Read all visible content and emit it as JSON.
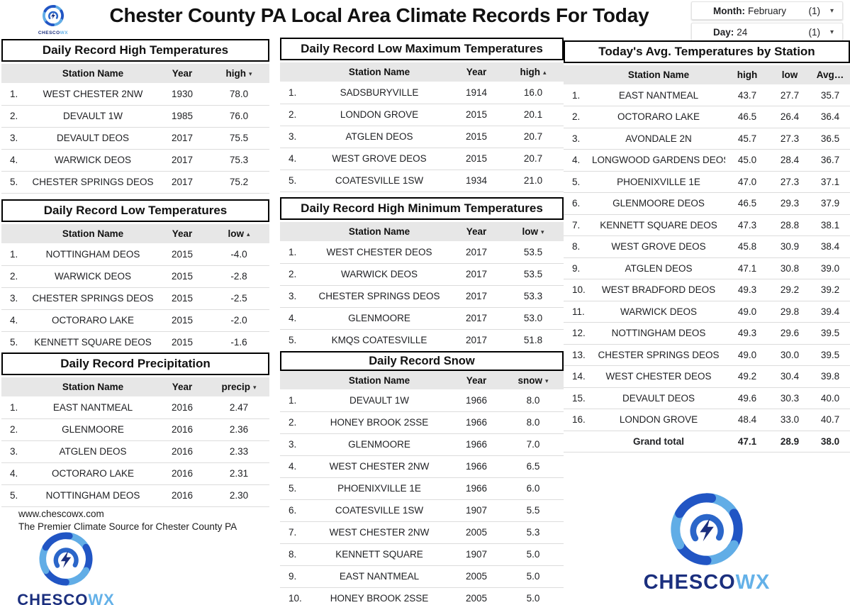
{
  "header": {
    "title": "Chester County PA Local Area Climate Records For Today",
    "filters": [
      {
        "label": "Month:",
        "value": "February",
        "count": "(1)",
        "caret": "▾"
      },
      {
        "label": "Day:",
        "value": "24",
        "count": "(1)",
        "caret": "▾"
      }
    ]
  },
  "brand": {
    "name_primary": "CHESCO",
    "name_secondary": "WX",
    "url": "www.chescowx.com",
    "tagline": "The Premier Climate Source for Chester County PA",
    "color_dark": "#1b2f7e",
    "color_light": "#64b1e8",
    "swirl_dark": "#2155c4",
    "swirl_light": "#61ade6"
  },
  "record_tables": [
    {
      "key": "daily-record-high-temperatures",
      "title": "Daily Record High Temperatures",
      "columns": [
        "Station Name",
        "Year",
        "high"
      ],
      "sort_dir": "desc",
      "rows": [
        [
          "WEST CHESTER 2NW",
          "1930",
          "78.0"
        ],
        [
          "DEVAULT 1W",
          "1985",
          "76.0"
        ],
        [
          "DEVAULT DEOS",
          "2017",
          "75.5"
        ],
        [
          "WARWICK DEOS",
          "2017",
          "75.3"
        ],
        [
          "CHESTER SPRINGS DEOS",
          "2017",
          "75.2"
        ]
      ]
    },
    {
      "key": "daily-record-low-maximum-temperatures",
      "title": "Daily Record Low Maximum Temperatures",
      "columns": [
        "Station Name",
        "Year",
        "high"
      ],
      "sort_dir": "asc",
      "rows": [
        [
          "SADSBURYVILLE",
          "1914",
          "16.0"
        ],
        [
          "LONDON GROVE",
          "2015",
          "20.1"
        ],
        [
          "ATGLEN DEOS",
          "2015",
          "20.7"
        ],
        [
          "WEST GROVE DEOS",
          "2015",
          "20.7"
        ],
        [
          "COATESVILLE 1SW",
          "1934",
          "21.0"
        ]
      ]
    },
    {
      "key": "daily-record-low-temperatures",
      "title": "Daily Record Low Temperatures",
      "columns": [
        "Station Name",
        "Year",
        "low"
      ],
      "sort_dir": "asc",
      "rows": [
        [
          "NOTTINGHAM DEOS",
          "2015",
          "-4.0"
        ],
        [
          "WARWICK DEOS",
          "2015",
          "-2.8"
        ],
        [
          "CHESTER SPRINGS DEOS",
          "2015",
          "-2.5"
        ],
        [
          "OCTORARO LAKE",
          "2015",
          "-2.0"
        ],
        [
          "KENNETT SQUARE DEOS",
          "2015",
          "-1.6"
        ]
      ]
    },
    {
      "key": "daily-record-high-minimum-temperatures",
      "title": "Daily Record High Minimum Temperatures",
      "columns": [
        "Station Name",
        "Year",
        "low"
      ],
      "sort_dir": "desc",
      "rows": [
        [
          "WEST CHESTER DEOS",
          "2017",
          "53.5"
        ],
        [
          "WARWICK DEOS",
          "2017",
          "53.5"
        ],
        [
          "CHESTER SPRINGS DEOS",
          "2017",
          "53.3"
        ],
        [
          "GLENMOORE",
          "2017",
          "53.0"
        ],
        [
          "KMQS COATESVILLE",
          "2017",
          "51.8"
        ]
      ]
    },
    {
      "key": "daily-record-precipitation",
      "title": "Daily Record Precipitation",
      "columns": [
        "Station Name",
        "Year",
        "precip"
      ],
      "sort_dir": "desc",
      "rows": [
        [
          "EAST NANTMEAL",
          "2016",
          "2.47"
        ],
        [
          "GLENMOORE",
          "2016",
          "2.36"
        ],
        [
          "ATGLEN DEOS",
          "2016",
          "2.33"
        ],
        [
          "OCTORARO LAKE",
          "2016",
          "2.31"
        ],
        [
          "NOTTINGHAM DEOS",
          "2016",
          "2.30"
        ]
      ]
    },
    {
      "key": "daily-record-snow",
      "title": "Daily Record Snow",
      "columns": [
        "Station Name",
        "Year",
        "snow"
      ],
      "sort_dir": "desc",
      "rows": [
        [
          "DEVAULT 1W",
          "1966",
          "8.0"
        ],
        [
          "HONEY BROOK 2SSE",
          "1966",
          "8.0"
        ],
        [
          "GLENMOORE",
          "1966",
          "7.0"
        ],
        [
          "WEST CHESTER 2NW",
          "1966",
          "6.5"
        ],
        [
          "PHOENIXVILLE 1E",
          "1966",
          "6.0"
        ],
        [
          "COATESVILLE 1SW",
          "1907",
          "5.5"
        ],
        [
          "WEST CHESTER 2NW",
          "2005",
          "5.3"
        ],
        [
          "KENNETT SQUARE",
          "1907",
          "5.0"
        ],
        [
          "EAST NANTMEAL",
          "2005",
          "5.0"
        ],
        [
          "HONEY BROOK 2SSE",
          "2005",
          "5.0"
        ]
      ]
    }
  ],
  "avg_table": {
    "key": "todays-avg-temperatures-by-station",
    "title": "Today's Avg. Temperatures by Station",
    "columns": [
      "Station Name",
      "high",
      "low",
      "Avg…"
    ],
    "rows": [
      [
        "EAST NANTMEAL",
        "43.7",
        "27.7",
        "35.7"
      ],
      [
        "OCTORARO LAKE",
        "46.5",
        "26.4",
        "36.4"
      ],
      [
        "AVONDALE 2N",
        "45.7",
        "27.3",
        "36.5"
      ],
      [
        "LONGWOOD GARDENS DEOS",
        "45.0",
        "28.4",
        "36.7"
      ],
      [
        "PHOENIXVILLE 1E",
        "47.0",
        "27.3",
        "37.1"
      ],
      [
        "GLENMOORE DEOS",
        "46.5",
        "29.3",
        "37.9"
      ],
      [
        "KENNETT SQUARE DEOS",
        "47.3",
        "28.8",
        "38.1"
      ],
      [
        "WEST GROVE DEOS",
        "45.8",
        "30.9",
        "38.4"
      ],
      [
        "ATGLEN DEOS",
        "47.1",
        "30.8",
        "39.0"
      ],
      [
        "WEST BRADFORD DEOS",
        "49.3",
        "29.2",
        "39.2"
      ],
      [
        "WARWICK DEOS",
        "49.0",
        "29.8",
        "39.4"
      ],
      [
        "NOTTINGHAM DEOS",
        "49.3",
        "29.6",
        "39.5"
      ],
      [
        "CHESTER SPRINGS DEOS",
        "49.0",
        "30.0",
        "39.5"
      ],
      [
        "WEST CHESTER DEOS",
        "49.2",
        "30.4",
        "39.8"
      ],
      [
        "DEVAULT DEOS",
        "49.6",
        "30.3",
        "40.0"
      ],
      [
        "LONDON GROVE",
        "48.4",
        "33.0",
        "40.7"
      ]
    ],
    "grand_total": [
      "Grand total",
      "47.1",
      "28.9",
      "38.0"
    ]
  }
}
